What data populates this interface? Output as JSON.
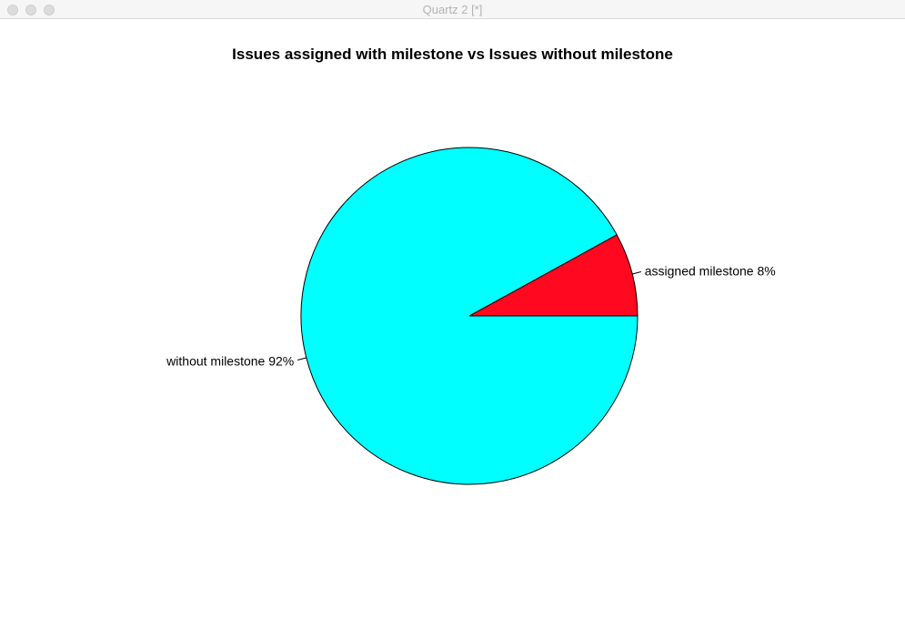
{
  "window": {
    "title": "Quartz 2 [*]"
  },
  "chart_data": {
    "type": "pie",
    "title": "Issues assigned with milestone vs Issues without milestone",
    "slices": [
      {
        "label": "assigned milestone 8%",
        "value": 8,
        "color": "#ff0820"
      },
      {
        "label": "without milestone 92%",
        "value": 92,
        "color": "#00ffff"
      }
    ],
    "start_angle_deg": 0,
    "direction": "counterclockwise",
    "border_color": "#000000"
  }
}
